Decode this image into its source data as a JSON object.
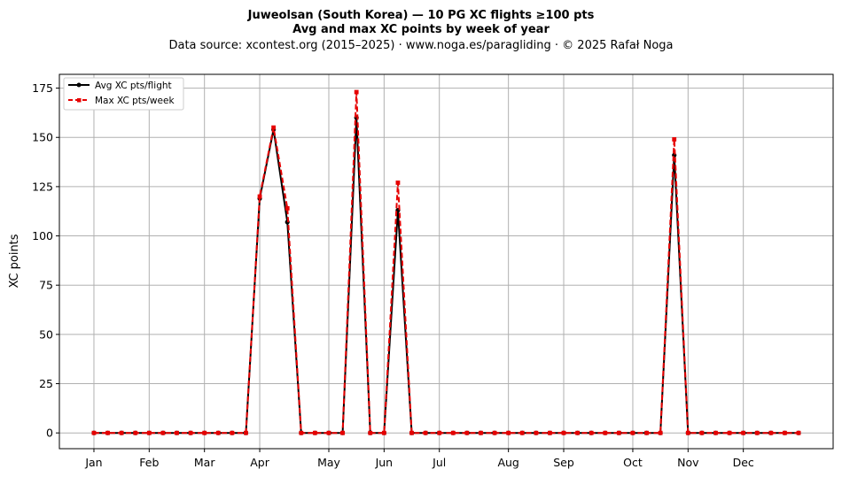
{
  "chart_data": {
    "type": "line",
    "title": "Juweolsan (South Korea)  —  10 PG XC flights ≥100 pts",
    "title_line2": "Avg and max XC points by week of year",
    "subtitle": "Data source: xcontest.org (2015–2025)  ·  www.noga.es/paragliding  ·  © 2025 Rafał Noga",
    "xlabel": "",
    "ylabel": "XC points",
    "x_ticks": [
      {
        "label": "Jan",
        "week": 1
      },
      {
        "label": "Feb",
        "week": 5
      },
      {
        "label": "Mar",
        "week": 9
      },
      {
        "label": "Apr",
        "week": 13
      },
      {
        "label": "May",
        "week": 18
      },
      {
        "label": "Jun",
        "week": 22
      },
      {
        "label": "Jul",
        "week": 26
      },
      {
        "label": "Aug",
        "week": 31
      },
      {
        "label": "Sep",
        "week": 35
      },
      {
        "label": "Oct",
        "week": 40
      },
      {
        "label": "Nov",
        "week": 44
      },
      {
        "label": "Dec",
        "week": 48
      }
    ],
    "y_ticks": [
      0,
      25,
      50,
      75,
      100,
      125,
      150,
      175
    ],
    "xlim": [
      -1.5,
      54.5
    ],
    "ylim": [
      -8,
      182
    ],
    "grid": true,
    "legend_position": "top-left",
    "series": [
      {
        "name": "Avg XC pts/flight",
        "color": "#000000",
        "style": "solid",
        "marker": "circle",
        "x": [
          1,
          2,
          3,
          4,
          5,
          6,
          7,
          8,
          9,
          10,
          11,
          12,
          13,
          14,
          15,
          16,
          17,
          18,
          19,
          20,
          21,
          22,
          23,
          24,
          25,
          26,
          27,
          28,
          29,
          30,
          31,
          32,
          33,
          34,
          35,
          36,
          37,
          38,
          39,
          40,
          41,
          42,
          43,
          44,
          45,
          46,
          47,
          48,
          49,
          50,
          51,
          52
        ],
        "y": [
          0,
          0,
          0,
          0,
          0,
          0,
          0,
          0,
          0,
          0,
          0,
          0,
          119,
          154,
          107,
          0,
          0,
          0,
          0,
          160,
          0,
          0,
          113,
          0,
          0,
          0,
          0,
          0,
          0,
          0,
          0,
          0,
          0,
          0,
          0,
          0,
          0,
          0,
          0,
          0,
          0,
          0,
          141,
          0,
          0,
          0,
          0,
          0,
          0,
          0,
          0,
          0
        ]
      },
      {
        "name": "Max XC pts/week",
        "color": "#e60000",
        "style": "dashed",
        "marker": "square",
        "x": [
          1,
          2,
          3,
          4,
          5,
          6,
          7,
          8,
          9,
          10,
          11,
          12,
          13,
          14,
          15,
          16,
          17,
          18,
          19,
          20,
          21,
          22,
          23,
          24,
          25,
          26,
          27,
          28,
          29,
          30,
          31,
          32,
          33,
          34,
          35,
          36,
          37,
          38,
          39,
          40,
          41,
          42,
          43,
          44,
          45,
          46,
          47,
          48,
          49,
          50,
          51,
          52
        ],
        "y": [
          0,
          0,
          0,
          0,
          0,
          0,
          0,
          0,
          0,
          0,
          0,
          0,
          120,
          155,
          114,
          0,
          0,
          0,
          0,
          173,
          0,
          0,
          127,
          0,
          0,
          0,
          0,
          0,
          0,
          0,
          0,
          0,
          0,
          0,
          0,
          0,
          0,
          0,
          0,
          0,
          0,
          0,
          149,
          0,
          0,
          0,
          0,
          0,
          0,
          0,
          0,
          0
        ]
      }
    ]
  }
}
